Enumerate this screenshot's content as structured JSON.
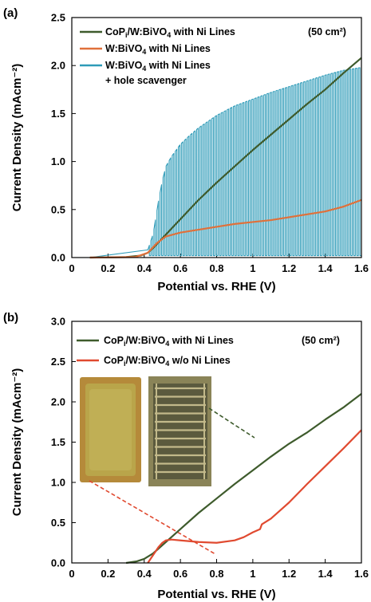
{
  "chart_data": [
    {
      "panel_label": "(a)",
      "type": "line",
      "xlabel": "Potential vs. RHE (V)",
      "ylabel": "Current Density (mAcm⁻²)",
      "xlim": [
        0,
        1.6
      ],
      "ylim": [
        0,
        2.5
      ],
      "xticks": [
        "0",
        "0.2",
        "0.4",
        "0.6",
        "0.8",
        "1",
        "1.2",
        "1.4",
        "1.6"
      ],
      "yticks": [
        "0.0",
        "0.5",
        "1.0",
        "1.5",
        "2.0",
        "2.5"
      ],
      "annotation": "(50 cm²)",
      "legend_position": "top-left",
      "series": [
        {
          "name": "CoPi/W:BiVO4 with Ni Lines",
          "legend": {
            "pre": "CoP",
            "sub1": "i",
            "mid": "/W:BiVO",
            "sub2": "4",
            "post": " with Ni Lines"
          },
          "color": "#3e5b2c",
          "x": [
            0.1,
            0.3,
            0.38,
            0.42,
            0.45,
            0.5,
            0.55,
            0.6,
            0.7,
            0.8,
            0.9,
            1.0,
            1.1,
            1.2,
            1.3,
            1.4,
            1.5,
            1.6
          ],
          "y": [
            0.0,
            0.005,
            0.02,
            0.05,
            0.1,
            0.2,
            0.3,
            0.4,
            0.6,
            0.78,
            0.95,
            1.12,
            1.28,
            1.44,
            1.6,
            1.75,
            1.92,
            2.08
          ]
        },
        {
          "name": "W:BiVO4 with Ni Lines",
          "legend": {
            "pre": "W:BiVO",
            "sub1": "4",
            "post": " with Ni Lines"
          },
          "color": "#e0703a",
          "x": [
            0.1,
            0.35,
            0.42,
            0.47,
            0.52,
            0.6,
            0.7,
            0.8,
            0.9,
            1.0,
            1.1,
            1.2,
            1.3,
            1.4,
            1.5,
            1.6
          ],
          "y": [
            0.0,
            0.005,
            0.05,
            0.15,
            0.22,
            0.26,
            0.29,
            0.32,
            0.35,
            0.37,
            0.39,
            0.42,
            0.45,
            0.48,
            0.53,
            0.6
          ]
        },
        {
          "name": "W:BiVO4 with Ni Lines + hole scavenger",
          "legend": {
            "pre": "W:BiVO",
            "sub1": "4",
            "post": " with Ni Lines"
          },
          "legend_line2": "+ hole scavenger",
          "color": "#2e9bb8",
          "chopped": true,
          "x": [
            0.1,
            0.38,
            0.42,
            0.45,
            0.48,
            0.5,
            0.52,
            0.55,
            0.6,
            0.65,
            0.7,
            0.8,
            0.9,
            1.0,
            1.1,
            1.2,
            1.3,
            1.4,
            1.5,
            1.6
          ],
          "y": [
            0.0,
            0.02,
            0.08,
            0.25,
            0.6,
            0.8,
            0.95,
            1.05,
            1.18,
            1.27,
            1.35,
            1.48,
            1.58,
            1.65,
            1.72,
            1.78,
            1.84,
            1.9,
            1.95,
            1.98
          ]
        }
      ]
    },
    {
      "panel_label": "(b)",
      "type": "line",
      "xlabel": "Potential vs. RHE (V)",
      "ylabel": "Current Density (mAcm⁻²)",
      "xlim": [
        0,
        1.6
      ],
      "ylim": [
        0,
        3.0
      ],
      "xticks": [
        "0",
        "0.2",
        "0.4",
        "0.6",
        "0.8",
        "1",
        "1.2",
        "1.4",
        "1.6"
      ],
      "yticks": [
        "0.0",
        "0.5",
        "1.0",
        "1.5",
        "2.0",
        "2.5",
        "3.0"
      ],
      "annotation": "(50 cm²)",
      "legend_position": "top-left",
      "series": [
        {
          "name": "CoPi/W:BiVO4 with Ni Lines",
          "legend": {
            "pre": "CoP",
            "sub1": "i",
            "mid": "/W:BiVO",
            "sub2": "4",
            "post": " with Ni Lines"
          },
          "color": "#3e5b2c",
          "x": [
            0.3,
            0.36,
            0.4,
            0.45,
            0.5,
            0.55,
            0.6,
            0.7,
            0.8,
            0.9,
            1.0,
            1.1,
            1.2,
            1.3,
            1.4,
            1.5,
            1.6
          ],
          "y": [
            0.0,
            0.02,
            0.05,
            0.12,
            0.22,
            0.32,
            0.42,
            0.62,
            0.8,
            0.98,
            1.15,
            1.32,
            1.48,
            1.62,
            1.78,
            1.93,
            2.1
          ]
        },
        {
          "name": "CoPi/W:BiVO4 w/o Ni Lines",
          "legend": {
            "pre": "CoP",
            "sub1": "i",
            "mid": "/W:BiVO",
            "sub2": "4",
            "post": " w/o Ni Lines"
          },
          "color": "#e04a30",
          "x": [
            0.42,
            0.45,
            0.48,
            0.5,
            0.52,
            0.55,
            0.6,
            0.7,
            0.8,
            0.9,
            0.95,
            1.0,
            1.04,
            1.05,
            1.1,
            1.2,
            1.3,
            1.4,
            1.5,
            1.6
          ],
          "y": [
            0.0,
            0.1,
            0.2,
            0.25,
            0.28,
            0.29,
            0.28,
            0.26,
            0.25,
            0.28,
            0.32,
            0.38,
            0.42,
            0.48,
            0.55,
            0.75,
            0.98,
            1.2,
            1.42,
            1.65
          ]
        }
      ]
    }
  ]
}
